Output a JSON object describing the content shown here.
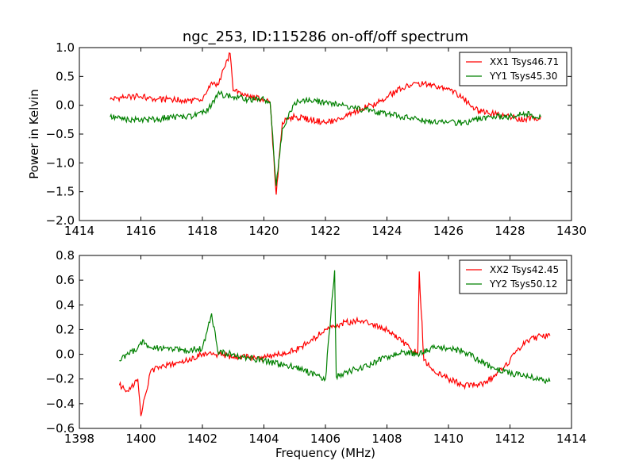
{
  "figure": {
    "title": "ngc_253, ID:115286 on-off/off spectrum",
    "xlabel": "Frequency (MHz)",
    "ylabel": "Power in Kelvin"
  },
  "chart_data": [
    {
      "type": "line",
      "title": "ngc_253, ID:115286 on-off/off spectrum",
      "xlabel": "",
      "ylabel": "Power in Kelvin",
      "xlim": [
        1414,
        1430
      ],
      "ylim": [
        -2.0,
        1.0
      ],
      "xticks": [
        1414,
        1416,
        1418,
        1420,
        1422,
        1424,
        1426,
        1428,
        1430
      ],
      "xtick_labels": [
        "1414",
        "1416",
        "1418",
        "1420",
        "1422",
        "1424",
        "1426",
        "1428",
        "1430"
      ],
      "yticks": [
        1.0,
        0.5,
        0.0,
        -0.5,
        -1.0,
        -1.5,
        -2.0
      ],
      "ytick_labels": [
        "1.0",
        "0.5",
        "0.0",
        "−0.5",
        "−1.0",
        "−1.5",
        "−2.0"
      ],
      "grid": false,
      "legend_position": "top-right",
      "series": [
        {
          "name": "XX1 Tsys46.71",
          "color": "#ff0000",
          "x": [
            1415.0,
            1415.5,
            1416.0,
            1416.5,
            1417.0,
            1417.5,
            1418.0,
            1418.3,
            1418.5,
            1418.9,
            1419.0,
            1419.5,
            1420.0,
            1420.2,
            1420.4,
            1420.6,
            1421.0,
            1421.5,
            1422.0,
            1422.5,
            1423.0,
            1423.5,
            1424.0,
            1424.5,
            1425.0,
            1425.5,
            1426.0,
            1426.5,
            1427.0,
            1427.5,
            1428.0,
            1428.5,
            1429.0
          ],
          "y": [
            0.1,
            0.15,
            0.15,
            0.1,
            0.1,
            0.08,
            0.08,
            0.4,
            0.35,
            0.9,
            0.25,
            0.15,
            0.1,
            0.05,
            -1.55,
            -0.3,
            -0.2,
            -0.25,
            -0.3,
            -0.25,
            -0.1,
            0.0,
            0.15,
            0.3,
            0.38,
            0.35,
            0.3,
            0.1,
            -0.1,
            -0.15,
            -0.2,
            -0.25,
            -0.2
          ]
        },
        {
          "name": "YY1 Tsys45.30",
          "color": "#008000",
          "x": [
            1415.0,
            1415.5,
            1416.0,
            1416.5,
            1417.0,
            1417.5,
            1418.0,
            1418.3,
            1418.5,
            1419.0,
            1419.5,
            1420.0,
            1420.2,
            1420.4,
            1420.6,
            1421.0,
            1421.5,
            1422.0,
            1422.5,
            1423.0,
            1423.5,
            1424.0,
            1424.5,
            1425.0,
            1425.5,
            1426.0,
            1426.5,
            1427.0,
            1427.5,
            1428.0,
            1428.5,
            1429.0
          ],
          "y": [
            -0.2,
            -0.25,
            -0.25,
            -0.25,
            -0.2,
            -0.2,
            -0.15,
            0.0,
            0.2,
            0.15,
            0.1,
            0.1,
            0.05,
            -1.4,
            -0.4,
            0.05,
            0.08,
            0.05,
            0.0,
            -0.05,
            -0.1,
            -0.15,
            -0.2,
            -0.25,
            -0.3,
            -0.3,
            -0.3,
            -0.25,
            -0.2,
            -0.2,
            -0.15,
            -0.2
          ]
        }
      ]
    },
    {
      "type": "line",
      "title": "",
      "xlabel": "Frequency (MHz)",
      "ylabel": "",
      "xlim": [
        1398,
        1414
      ],
      "ylim": [
        -0.6,
        0.8
      ],
      "xticks": [
        1398,
        1400,
        1402,
        1404,
        1406,
        1408,
        1410,
        1412,
        1414
      ],
      "xtick_labels": [
        "1398",
        "1400",
        "1402",
        "1404",
        "1406",
        "1408",
        "1410",
        "1412",
        "1414"
      ],
      "yticks": [
        0.8,
        0.6,
        0.4,
        0.2,
        0.0,
        -0.2,
        -0.4,
        -0.6
      ],
      "ytick_labels": [
        "0.8",
        "0.6",
        "0.4",
        "0.2",
        "0.0",
        "−0.2",
        "−0.4",
        "−0.6"
      ],
      "grid": false,
      "legend_position": "top-right",
      "series": [
        {
          "name": "XX2 Tsys42.45",
          "color": "#ff0000",
          "x": [
            1399.3,
            1399.6,
            1399.9,
            1400.0,
            1400.3,
            1400.6,
            1401.0,
            1401.5,
            1402.0,
            1402.5,
            1403.0,
            1403.5,
            1404.0,
            1404.5,
            1405.0,
            1405.5,
            1406.0,
            1406.3,
            1406.5,
            1407.0,
            1407.5,
            1408.0,
            1408.5,
            1409.0,
            1409.05,
            1409.2,
            1409.5,
            1410.0,
            1410.5,
            1411.0,
            1411.5,
            1412.0,
            1412.5,
            1413.0,
            1413.3
          ],
          "y": [
            -0.25,
            -0.3,
            -0.2,
            -0.5,
            -0.15,
            -0.1,
            -0.08,
            -0.05,
            0.0,
            0.0,
            -0.02,
            -0.02,
            -0.03,
            0.0,
            0.03,
            0.1,
            0.2,
            0.22,
            0.25,
            0.27,
            0.25,
            0.2,
            0.1,
            0.0,
            0.67,
            -0.05,
            -0.12,
            -0.2,
            -0.25,
            -0.25,
            -0.18,
            -0.05,
            0.1,
            0.15,
            0.15
          ]
        },
        {
          "name": "YY2 Tsys50.12",
          "color": "#008000",
          "x": [
            1399.3,
            1399.6,
            1399.9,
            1400.0,
            1400.5,
            1401.0,
            1401.5,
            1402.0,
            1402.3,
            1402.5,
            1403.0,
            1403.5,
            1404.0,
            1404.5,
            1405.0,
            1405.5,
            1406.0,
            1406.3,
            1406.35,
            1406.6,
            1407.0,
            1407.5,
            1408.0,
            1408.5,
            1409.0,
            1409.5,
            1410.0,
            1410.5,
            1411.0,
            1411.5,
            1412.0,
            1412.5,
            1413.0,
            1413.3
          ],
          "y": [
            -0.05,
            0.0,
            0.05,
            0.1,
            0.05,
            0.05,
            0.03,
            0.05,
            0.33,
            0.02,
            0.0,
            -0.03,
            -0.05,
            -0.08,
            -0.1,
            -0.15,
            -0.2,
            0.68,
            -0.18,
            -0.15,
            -0.12,
            -0.08,
            -0.02,
            0.02,
            0.0,
            0.05,
            0.05,
            0.02,
            -0.05,
            -0.12,
            -0.15,
            -0.18,
            -0.2,
            -0.22
          ]
        }
      ]
    }
  ]
}
